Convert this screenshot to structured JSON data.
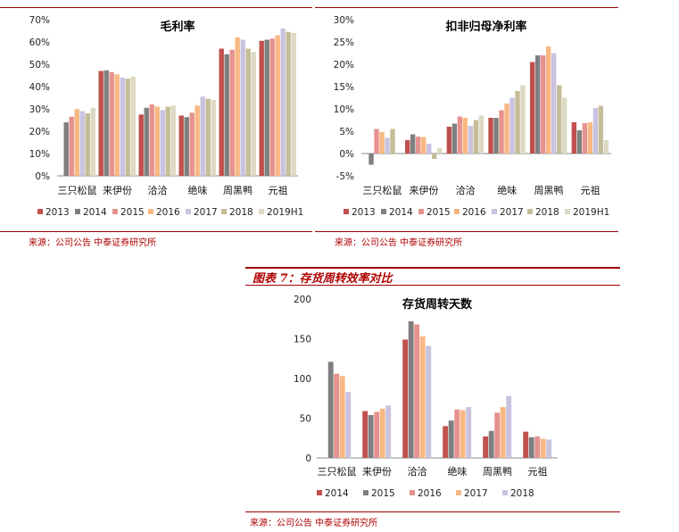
{
  "charts": [
    {
      "id": "gross_margin",
      "source": "来源：公司公告 中泰证券研究所"
    },
    {
      "id": "net_margin",
      "source": "来源：公司公告 中泰证券研究所"
    },
    {
      "id": "inventory_turnover",
      "figure_title": "图表 7：存货周转效率对比",
      "source": "来源：公司公告 中泰证券研究所"
    }
  ],
  "colors": [
    "#c0504d",
    "#7f7f7f",
    "#e6928f",
    "#f9b883",
    "#c9c3e0",
    "#c4bd97",
    "#ddd9c3"
  ],
  "chart_data": [
    {
      "type": "bar",
      "title": "毛利率",
      "categories": [
        "三只松鼠",
        "来伊份",
        "洽洽",
        "绝味",
        "周黑鸭",
        "元祖"
      ],
      "series": [
        {
          "name": "2013",
          "values": [
            null,
            47.0,
            27.5,
            27.0,
            57.0,
            60.5
          ]
        },
        {
          "name": "2014",
          "values": [
            24.0,
            47.3,
            30.5,
            26.3,
            54.5,
            61.0
          ]
        },
        {
          "name": "2015",
          "values": [
            26.5,
            46.5,
            32.0,
            28.3,
            56.5,
            61.5
          ]
        },
        {
          "name": "2016",
          "values": [
            30.0,
            45.5,
            31.0,
            31.5,
            62.0,
            63.0
          ]
        },
        {
          "name": "2017",
          "values": [
            29.0,
            44.0,
            29.5,
            35.5,
            61.0,
            66.0
          ]
        },
        {
          "name": "2018",
          "values": [
            28.0,
            43.5,
            31.0,
            34.5,
            57.0,
            64.5
          ]
        },
        {
          "name": "2019H1",
          "values": [
            30.5,
            44.5,
            31.5,
            34.0,
            55.5,
            64.0
          ]
        }
      ],
      "y_ticks": [
        "0%",
        "10%",
        "20%",
        "30%",
        "40%",
        "50%",
        "60%",
        "70%"
      ],
      "ylim": [
        0,
        70
      ],
      "legend": "bottom"
    },
    {
      "type": "bar",
      "title": "扣非归母净利率",
      "categories": [
        "三只松鼠",
        "来伊份",
        "洽洽",
        "绝味",
        "周黑鸭",
        "元祖"
      ],
      "series": [
        {
          "name": "2013",
          "values": [
            null,
            3.0,
            6.0,
            8.0,
            20.5,
            7.0
          ]
        },
        {
          "name": "2014",
          "values": [
            -2.5,
            4.3,
            6.7,
            8.0,
            22.0,
            5.2
          ]
        },
        {
          "name": "2015",
          "values": [
            5.5,
            3.8,
            8.3,
            9.7,
            22.0,
            6.8
          ]
        },
        {
          "name": "2016",
          "values": [
            4.8,
            3.7,
            8.0,
            11.2,
            24.0,
            7.0
          ]
        },
        {
          "name": "2017",
          "values": [
            3.5,
            2.2,
            6.2,
            12.5,
            22.5,
            10.2
          ]
        },
        {
          "name": "2018",
          "values": [
            5.5,
            -1.2,
            7.5,
            14.0,
            15.3,
            10.7
          ]
        },
        {
          "name": "2019H1",
          "values": [
            null,
            1.2,
            8.5,
            15.3,
            12.5,
            3.0
          ]
        }
      ],
      "y_ticks": [
        "-5%",
        "0%",
        "5%",
        "10%",
        "15%",
        "20%",
        "25%",
        "30%"
      ],
      "ylim": [
        -5,
        30
      ],
      "legend": "bottom"
    },
    {
      "type": "bar",
      "title": "存货周转天数",
      "categories": [
        "三只松鼠",
        "来伊份",
        "洽洽",
        "绝味",
        "周黑鸭",
        "元祖"
      ],
      "series": [
        {
          "name": "2014",
          "values": [
            null,
            59,
            149,
            40,
            27,
            33
          ]
        },
        {
          "name": "2015",
          "values": [
            121,
            54,
            172,
            47,
            34,
            26
          ]
        },
        {
          "name": "2016",
          "values": [
            106,
            58,
            168,
            61,
            57,
            27
          ]
        },
        {
          "name": "2017",
          "values": [
            103,
            62,
            153,
            60,
            64,
            24
          ]
        },
        {
          "name": "2018",
          "values": [
            83,
            66,
            141,
            64,
            78,
            23
          ]
        }
      ],
      "y_ticks": [
        "0",
        "50",
        "100",
        "150",
        "200"
      ],
      "ylim": [
        0,
        200
      ],
      "legend": "bottom"
    }
  ]
}
